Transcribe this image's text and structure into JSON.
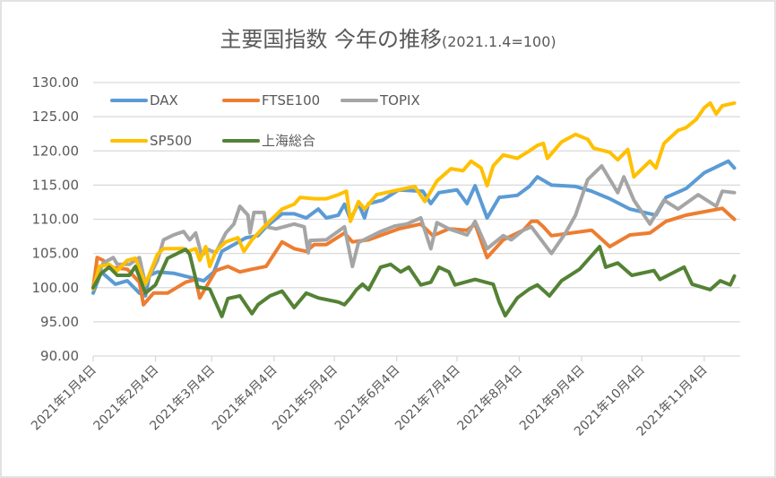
{
  "chart_data": {
    "type": "line",
    "title": "主要国指数 今年の推移",
    "subtitle": "(2021.1.4=100)",
    "xlabel": "",
    "ylabel": "",
    "x_unit": "days since 2021-01-04",
    "xlim": [
      0,
      320
    ],
    "ylim": [
      90,
      130
    ],
    "yticks": [
      90,
      95,
      100,
      105,
      110,
      115,
      120,
      125,
      130
    ],
    "ytick_labels": [
      "90.00",
      "95.00",
      "100.00",
      "105.00",
      "110.00",
      "115.00",
      "120.00",
      "125.00",
      "130.00"
    ],
    "xticks": [
      0,
      31,
      59,
      90,
      120,
      151,
      181,
      212,
      243,
      273,
      304
    ],
    "xtick_labels": [
      "2021年1月4日",
      "2021年2月4日",
      "2021年3月4日",
      "2021年4月4日",
      "2021年5月4日",
      "2021年6月4日",
      "2021年7月4日",
      "2021年8月4日",
      "2021年9月4日",
      "2021年10月4日",
      "2021年11月4日"
    ],
    "grid": true,
    "legend_position": "top-left",
    "series": [
      {
        "name": "DAX",
        "color": "#5B9BD5",
        "points": [
          [
            0,
            99.2
          ],
          [
            4,
            102.3
          ],
          [
            11,
            100.5
          ],
          [
            17,
            101
          ],
          [
            23,
            99.2
          ],
          [
            26,
            98.8
          ],
          [
            28,
            101.8
          ],
          [
            32,
            102.3
          ],
          [
            40,
            102.1
          ],
          [
            55,
            101
          ],
          [
            60,
            102.3
          ],
          [
            64,
            105.3
          ],
          [
            70,
            106.3
          ],
          [
            76,
            107.3
          ],
          [
            82,
            107.6
          ],
          [
            86,
            108.9
          ],
          [
            94,
            110.8
          ],
          [
            100,
            110.8
          ],
          [
            106,
            110.2
          ],
          [
            112,
            111.5
          ],
          [
            116,
            110.2
          ],
          [
            122,
            110.6
          ],
          [
            125,
            112.2
          ],
          [
            128,
            110
          ],
          [
            132,
            112.3
          ],
          [
            135,
            110.2
          ],
          [
            137,
            112.3
          ],
          [
            144,
            112.8
          ],
          [
            152,
            114.3
          ],
          [
            164,
            114.1
          ],
          [
            168,
            112.3
          ],
          [
            172,
            113.9
          ],
          [
            181,
            114.3
          ],
          [
            186,
            112.3
          ],
          [
            190,
            114.9
          ],
          [
            196,
            110.2
          ],
          [
            202,
            113.2
          ],
          [
            211,
            113.5
          ],
          [
            217,
            114.8
          ],
          [
            221,
            116.2
          ],
          [
            228,
            115
          ],
          [
            240,
            114.8
          ],
          [
            248,
            114.1
          ],
          [
            257,
            113
          ],
          [
            267,
            111.5
          ],
          [
            280,
            110.6
          ],
          [
            285,
            113.2
          ],
          [
            295,
            114.5
          ],
          [
            304,
            116.8
          ],
          [
            316,
            118.5
          ],
          [
            319,
            117.5
          ]
        ]
      },
      {
        "name": "FTSE100",
        "color": "#ED7D31",
        "points": [
          [
            0,
            100
          ],
          [
            2,
            104.4
          ],
          [
            5,
            104
          ],
          [
            8,
            103
          ],
          [
            17,
            102.7
          ],
          [
            23,
            100.8
          ],
          [
            25,
            97.5
          ],
          [
            30,
            99.2
          ],
          [
            37,
            99.2
          ],
          [
            46,
            100.8
          ],
          [
            51,
            101.2
          ],
          [
            53,
            98.5
          ],
          [
            58,
            101
          ],
          [
            61,
            102.5
          ],
          [
            67,
            103.1
          ],
          [
            73,
            102.3
          ],
          [
            79,
            102.7
          ],
          [
            86,
            103.1
          ],
          [
            94,
            106.7
          ],
          [
            100,
            105.7
          ],
          [
            106,
            105.3
          ],
          [
            110,
            106.3
          ],
          [
            116,
            106.3
          ],
          [
            125,
            108
          ],
          [
            129,
            106.7
          ],
          [
            137,
            107
          ],
          [
            152,
            108.6
          ],
          [
            163,
            109.3
          ],
          [
            169,
            107.6
          ],
          [
            177,
            108.6
          ],
          [
            186,
            108.4
          ],
          [
            190,
            109.3
          ],
          [
            196,
            104.4
          ],
          [
            204,
            107
          ],
          [
            214,
            108.4
          ],
          [
            218,
            109.7
          ],
          [
            221,
            109.7
          ],
          [
            224,
            108.9
          ],
          [
            228,
            107.6
          ],
          [
            248,
            108.4
          ],
          [
            257,
            106
          ],
          [
            267,
            107.7
          ],
          [
            277,
            108
          ],
          [
            285,
            109.7
          ],
          [
            295,
            110.6
          ],
          [
            313,
            111.6
          ],
          [
            319,
            110
          ]
        ]
      },
      {
        "name": "TOPIX",
        "color": "#A5A5A5",
        "points": [
          [
            0,
            100
          ],
          [
            5,
            103.6
          ],
          [
            10,
            104.4
          ],
          [
            12,
            103.4
          ],
          [
            18,
            103.4
          ],
          [
            23,
            104.4
          ],
          [
            26,
            100.5
          ],
          [
            32,
            104
          ],
          [
            35,
            107
          ],
          [
            40,
            107.7
          ],
          [
            45,
            108.2
          ],
          [
            48,
            107
          ],
          [
            51,
            108
          ],
          [
            54,
            104.7
          ],
          [
            57,
            105.6
          ],
          [
            61,
            105.1
          ],
          [
            66,
            108
          ],
          [
            70,
            109.3
          ],
          [
            73,
            111.9
          ],
          [
            77,
            110.6
          ],
          [
            78,
            108
          ],
          [
            80,
            111
          ],
          [
            85,
            111
          ],
          [
            86,
            108.9
          ],
          [
            91,
            108.6
          ],
          [
            100,
            109.3
          ],
          [
            105,
            108.9
          ],
          [
            107,
            105.1
          ],
          [
            108,
            106.9
          ],
          [
            116,
            107
          ],
          [
            125,
            108.9
          ],
          [
            129,
            103.1
          ],
          [
            132,
            106.6
          ],
          [
            143,
            108.2
          ],
          [
            150,
            109
          ],
          [
            156,
            109.3
          ],
          [
            163,
            110.2
          ],
          [
            168,
            105.7
          ],
          [
            171,
            109.5
          ],
          [
            177,
            108.6
          ],
          [
            186,
            107.7
          ],
          [
            190,
            109.7
          ],
          [
            196,
            105.7
          ],
          [
            204,
            107.6
          ],
          [
            208,
            107
          ],
          [
            214,
            108.4
          ],
          [
            218,
            108.9
          ],
          [
            228,
            105
          ],
          [
            235,
            108
          ],
          [
            240,
            110.6
          ],
          [
            246,
            115.8
          ],
          [
            253,
            117.8
          ],
          [
            261,
            113.9
          ],
          [
            264,
            116.2
          ],
          [
            269,
            112.8
          ],
          [
            277,
            109.3
          ],
          [
            284,
            112.8
          ],
          [
            291,
            111.5
          ],
          [
            301,
            113.6
          ],
          [
            310,
            111.9
          ],
          [
            313,
            114.1
          ],
          [
            319,
            113.9
          ]
        ]
      },
      {
        "name": "SP500",
        "color": "#FFC000",
        "points": [
          [
            0,
            99.8
          ],
          [
            3,
            103.1
          ],
          [
            8,
            103.4
          ],
          [
            12,
            102.5
          ],
          [
            17,
            104
          ],
          [
            21,
            104.3
          ],
          [
            26,
            100.5
          ],
          [
            32,
            104.9
          ],
          [
            35,
            105.7
          ],
          [
            45,
            105.7
          ],
          [
            47,
            105.3
          ],
          [
            51,
            105.7
          ],
          [
            53,
            104
          ],
          [
            56,
            106
          ],
          [
            58,
            103.1
          ],
          [
            61,
            105.3
          ],
          [
            66,
            106.7
          ],
          [
            72,
            107.3
          ],
          [
            75,
            105.3
          ],
          [
            79,
            107
          ],
          [
            85,
            108.9
          ],
          [
            94,
            111.5
          ],
          [
            100,
            112.2
          ],
          [
            103,
            113.2
          ],
          [
            110,
            113
          ],
          [
            116,
            113
          ],
          [
            122,
            113.6
          ],
          [
            126,
            114.1
          ],
          [
            128,
            109.7
          ],
          [
            132,
            112.6
          ],
          [
            135,
            111.5
          ],
          [
            141,
            113.6
          ],
          [
            152,
            114.3
          ],
          [
            160,
            114.8
          ],
          [
            165,
            112.6
          ],
          [
            171,
            115.6
          ],
          [
            178,
            117.4
          ],
          [
            184,
            117.1
          ],
          [
            188,
            118.5
          ],
          [
            193,
            117.5
          ],
          [
            196,
            114.9
          ],
          [
            199,
            117.8
          ],
          [
            204,
            119.4
          ],
          [
            211,
            118.9
          ],
          [
            217,
            120
          ],
          [
            221,
            120.8
          ],
          [
            224,
            121.1
          ],
          [
            226,
            118.9
          ],
          [
            233,
            121.3
          ],
          [
            240,
            122.4
          ],
          [
            246,
            121.7
          ],
          [
            249,
            120.4
          ],
          [
            257,
            119.8
          ],
          [
            261,
            118.7
          ],
          [
            266,
            120.2
          ],
          [
            269,
            116.2
          ],
          [
            277,
            118.5
          ],
          [
            280,
            117.5
          ],
          [
            284,
            121.1
          ],
          [
            291,
            123
          ],
          [
            295,
            123.4
          ],
          [
            300,
            124.6
          ],
          [
            304,
            126.3
          ],
          [
            307,
            127
          ],
          [
            310,
            125.4
          ],
          [
            313,
            126.6
          ],
          [
            319,
            127
          ]
        ]
      },
      {
        "name": "上海総合",
        "color": "#548235",
        "points": [
          [
            0,
            100
          ],
          [
            4,
            102.1
          ],
          [
            8,
            103
          ],
          [
            12,
            101.8
          ],
          [
            18,
            101.8
          ],
          [
            21,
            103.1
          ],
          [
            26,
            99.2
          ],
          [
            31,
            100.4
          ],
          [
            37,
            104.3
          ],
          [
            46,
            105.6
          ],
          [
            48,
            104.9
          ],
          [
            52,
            100.1
          ],
          [
            58,
            99.8
          ],
          [
            64,
            95.8
          ],
          [
            67,
            98.4
          ],
          [
            73,
            98.8
          ],
          [
            79,
            96.2
          ],
          [
            82,
            97.5
          ],
          [
            88,
            98.8
          ],
          [
            94,
            99.5
          ],
          [
            100,
            97.1
          ],
          [
            106,
            99.2
          ],
          [
            112,
            98.5
          ],
          [
            122,
            97.9
          ],
          [
            125,
            97.5
          ],
          [
            128,
            98.5
          ],
          [
            131,
            99.7
          ],
          [
            134,
            100.5
          ],
          [
            137,
            99.7
          ],
          [
            143,
            103
          ],
          [
            148,
            103.4
          ],
          [
            153,
            102.3
          ],
          [
            157,
            103
          ],
          [
            163,
            100.4
          ],
          [
            168,
            100.8
          ],
          [
            172,
            103
          ],
          [
            177,
            102.3
          ],
          [
            180,
            100.4
          ],
          [
            190,
            101.2
          ],
          [
            199,
            100.5
          ],
          [
            202,
            97.9
          ],
          [
            205,
            95.9
          ],
          [
            211,
            98.5
          ],
          [
            217,
            99.8
          ],
          [
            221,
            100.4
          ],
          [
            227,
            98.8
          ],
          [
            233,
            101
          ],
          [
            242,
            102.7
          ],
          [
            252,
            106
          ],
          [
            255,
            103
          ],
          [
            261,
            103.6
          ],
          [
            268,
            101.8
          ],
          [
            279,
            102.5
          ],
          [
            282,
            101.2
          ],
          [
            294,
            103
          ],
          [
            298,
            100.5
          ],
          [
            307,
            99.7
          ],
          [
            312,
            101
          ],
          [
            317,
            100.4
          ],
          [
            319,
            101.7
          ]
        ]
      }
    ]
  }
}
